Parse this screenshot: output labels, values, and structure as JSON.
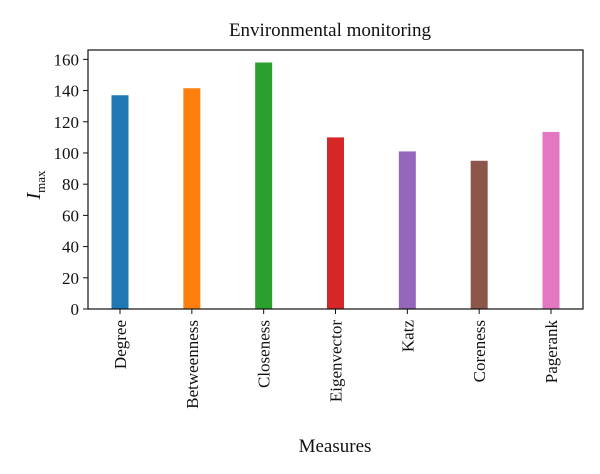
{
  "chart_data": {
    "type": "bar",
    "title": "Environmental monitoring",
    "xlabel": "Measures",
    "ylabel_main": "I",
    "ylabel_sub": "max",
    "categories": [
      "Degree",
      "Betweenness",
      "Closeness",
      "Eigenvector",
      "Katz",
      "Coreness",
      "Pagerank"
    ],
    "values": [
      137,
      141.5,
      158,
      110,
      101,
      95,
      113.5
    ],
    "colors": [
      "#1f77b4",
      "#ff7f0e",
      "#2ca02c",
      "#d62728",
      "#9467bd",
      "#8c564b",
      "#e377c2"
    ],
    "ylim": [
      0,
      166
    ],
    "yticks": [
      0,
      20,
      40,
      60,
      80,
      100,
      120,
      140,
      160
    ],
    "grid": false
  }
}
